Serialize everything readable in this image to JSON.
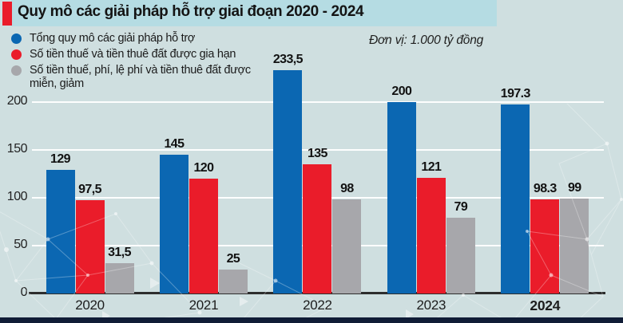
{
  "title": "Quy mô các giải pháp hỗ trợ giai đoạn 2020 - 2024",
  "unit_label": "Đơn vị: 1.000 tỷ đồng",
  "legend": {
    "items": [
      {
        "key": "total",
        "label": "Tổng quy mô các giải pháp hỗ trợ",
        "color": "#0b67b2"
      },
      {
        "key": "extended",
        "label": "Số tiền thuế và tiền thuê đất được gia hạn",
        "color": "#ea1c2a"
      },
      {
        "key": "exempted",
        "label": "Số tiền thuế, phí, lệ phí và tiền thuê đất được miễn, giảm",
        "color": "#a7a7ab"
      }
    ]
  },
  "chart_data": {
    "type": "bar",
    "title": "Quy mô các giải pháp hỗ trợ giai đoạn 2020 - 2024",
    "unit": "1.000 tỷ đồng",
    "categories": [
      "2020",
      "2021",
      "2022",
      "2023",
      "2024"
    ],
    "series": [
      {
        "key": "total",
        "name": "Tổng quy mô các giải pháp hỗ trợ",
        "color": "#0b67b2",
        "values": [
          129,
          145,
          233.5,
          200,
          197.3
        ],
        "labels": [
          "129",
          "145",
          "233,5",
          "200",
          "197.3"
        ]
      },
      {
        "key": "extended",
        "name": "Số tiền thuế và tiền thuê đất được gia hạn",
        "color": "#ea1c2a",
        "values": [
          97.5,
          120,
          135,
          121,
          98.3
        ],
        "labels": [
          "97,5",
          "120",
          "135",
          "121",
          "98.3"
        ]
      },
      {
        "key": "exempted",
        "name": "Số tiền thuế, phí, lệ phí và tiền thuê đất được miễn, giảm",
        "color": "#a7a7ab",
        "values": [
          31.5,
          25,
          98,
          79,
          99
        ],
        "labels": [
          "31,5",
          "25",
          "98",
          "79",
          "99"
        ]
      }
    ],
    "yticks": [
      0,
      50,
      100,
      150,
      200
    ],
    "ytick_labels": [
      "0",
      "50",
      "100",
      "150",
      "200"
    ],
    "ylim": [
      0,
      250
    ],
    "grid": true,
    "legend_position": "top-left"
  },
  "colors": {
    "background": "#cfdfe0",
    "title_band": "#b5dce3",
    "accent_red": "#ea1c2a",
    "bar_blue": "#0b67b2",
    "bar_red": "#ea1c2a",
    "bar_gray": "#a7a7ab",
    "footer_navy": "#101c36",
    "gridline": "#ffffff",
    "axis": "#2d2d2d"
  }
}
